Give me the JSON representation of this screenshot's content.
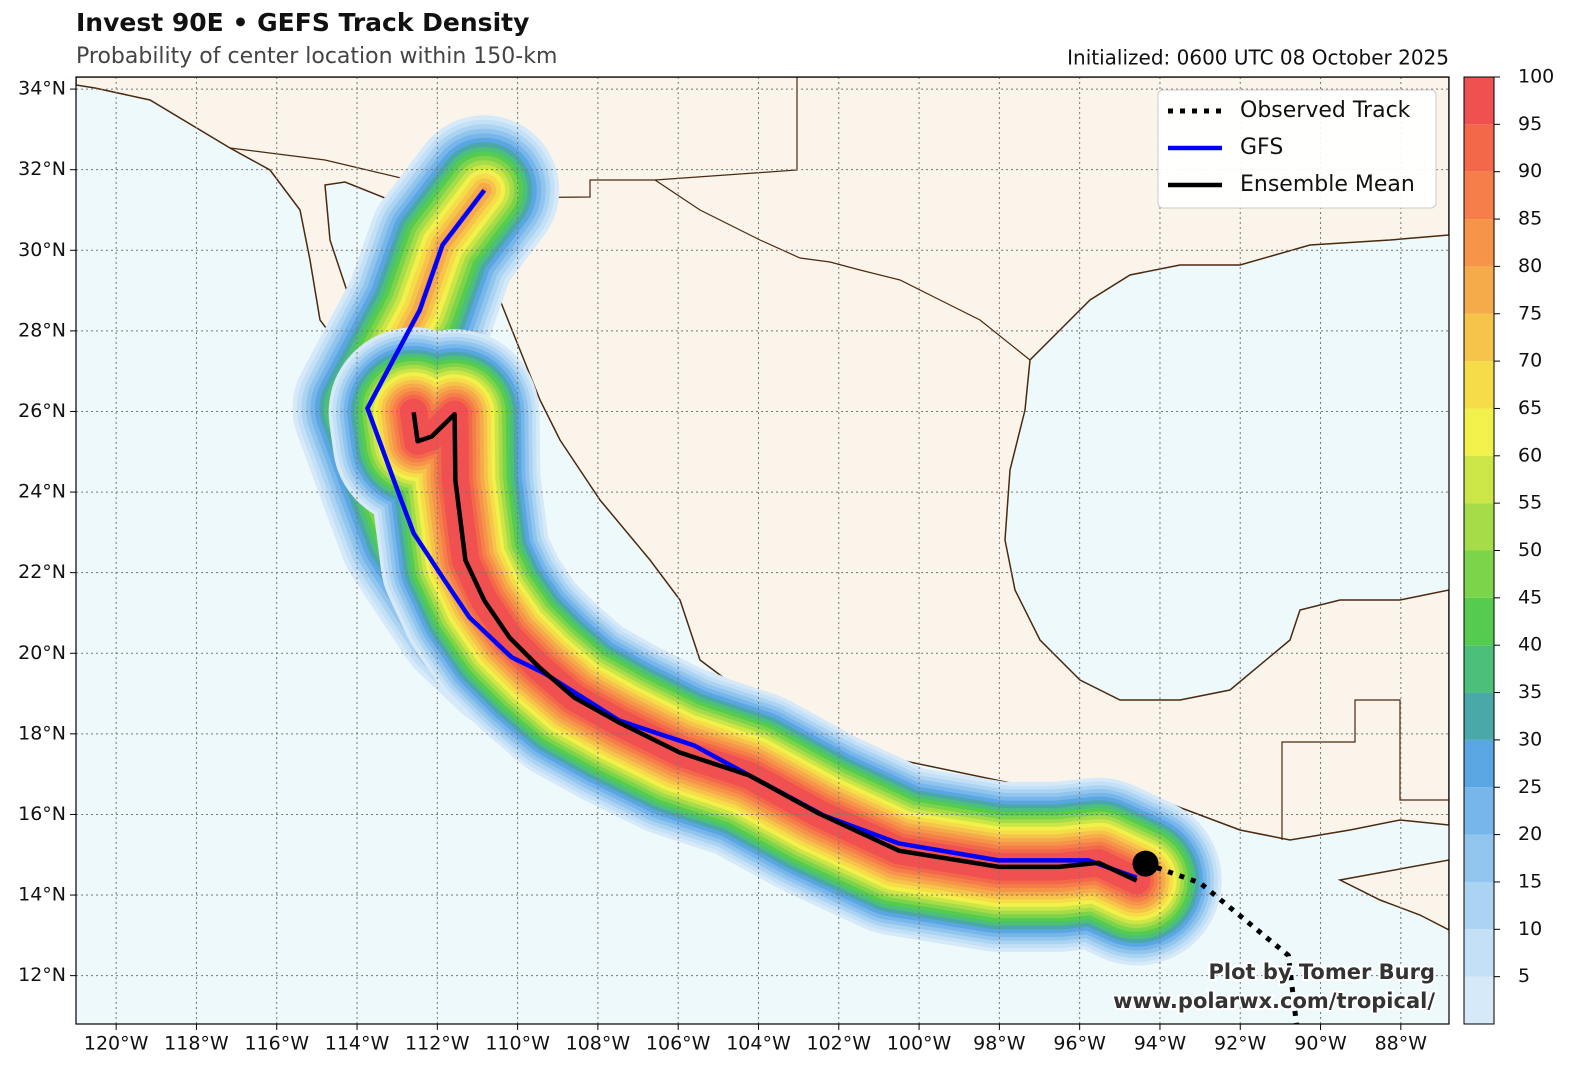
{
  "chart_data": {
    "type": "map",
    "title": "Invest 90E • GEFS Track Density",
    "subtitle": "Probability of center location within 150-km",
    "init_label": "Initialized: 0600 UTC 08 October 2025",
    "credit": [
      "Plot by Tomer Burg",
      "www.polarwx.com/tropical/"
    ],
    "xlim": [
      -121,
      -86.8
    ],
    "ylim": [
      10.8,
      34.3
    ],
    "grid": true,
    "xticks": [
      {
        "value": -120,
        "label": "120°W"
      },
      {
        "value": -118,
        "label": "118°W"
      },
      {
        "value": -116,
        "label": "116°W"
      },
      {
        "value": -114,
        "label": "114°W"
      },
      {
        "value": -112,
        "label": "112°W"
      },
      {
        "value": -110,
        "label": "110°W"
      },
      {
        "value": -108,
        "label": "108°W"
      },
      {
        "value": -106,
        "label": "106°W"
      },
      {
        "value": -104,
        "label": "104°W"
      },
      {
        "value": -102,
        "label": "102°W"
      },
      {
        "value": -100,
        "label": "100°W"
      },
      {
        "value": -98,
        "label": "98°W"
      },
      {
        "value": -96,
        "label": "96°W"
      },
      {
        "value": -94,
        "label": "94°W"
      },
      {
        "value": -92,
        "label": "92°W"
      },
      {
        "value": -90,
        "label": "90°W"
      },
      {
        "value": -88,
        "label": "88°W"
      }
    ],
    "yticks": [
      {
        "value": 12,
        "label": "12°N"
      },
      {
        "value": 14,
        "label": "14°N"
      },
      {
        "value": 16,
        "label": "16°N"
      },
      {
        "value": 18,
        "label": "18°N"
      },
      {
        "value": 20,
        "label": "20°N"
      },
      {
        "value": 22,
        "label": "22°N"
      },
      {
        "value": 24,
        "label": "24°N"
      },
      {
        "value": 26,
        "label": "26°N"
      },
      {
        "value": 28,
        "label": "28°N"
      },
      {
        "value": 30,
        "label": "30°N"
      },
      {
        "value": 32,
        "label": "32°N"
      },
      {
        "value": 34,
        "label": "34°N"
      }
    ],
    "series": [
      {
        "name": "Observed Track",
        "color": "#000000",
        "style": "dotted",
        "x": [
          -94.36,
          -93.0,
          -90.8,
          -90.6
        ],
        "y": [
          14.78,
          14.3,
          12.5,
          10.8
        ]
      },
      {
        "name": "GFS",
        "color": "#0000ff",
        "style": "solid",
        "x": [
          -110.83,
          -111.87,
          -112.44,
          -113.74,
          -112.99,
          -112.59,
          -111.82,
          -111.2,
          -110.15,
          -109.33,
          -107.47,
          -105.6,
          -104.23,
          -102.37,
          -100.5,
          -98.02,
          -95.78,
          -94.58
        ],
        "y": [
          31.49,
          30.13,
          28.51,
          26.08,
          24.04,
          22.98,
          21.81,
          20.89,
          19.9,
          19.5,
          18.33,
          17.71,
          16.97,
          15.97,
          15.28,
          14.86,
          14.86,
          14.43
        ]
      },
      {
        "name": "Ensemble Mean",
        "color": "#000000",
        "style": "solid",
        "x": [
          -112.59,
          -112.49,
          -112.14,
          -111.57,
          -111.55,
          -111.3,
          -110.83,
          -110.2,
          -109.46,
          -108.59,
          -107.47,
          -105.97,
          -104.23,
          -102.49,
          -100.5,
          -98.02,
          -96.52,
          -95.53,
          -94.58
        ],
        "y": [
          25.98,
          25.26,
          25.38,
          25.93,
          24.29,
          22.31,
          21.31,
          20.39,
          19.65,
          18.9,
          18.28,
          17.54,
          16.97,
          16.02,
          15.1,
          14.7,
          14.7,
          14.8,
          14.36
        ]
      }
    ],
    "current_position": {
      "x": -94.36,
      "y": 14.78
    },
    "colorbar": {
      "lim": [
        0,
        100
      ],
      "ticks": [
        5,
        10,
        15,
        20,
        25,
        30,
        35,
        40,
        45,
        50,
        55,
        60,
        65,
        70,
        75,
        80,
        85,
        90,
        95,
        100
      ],
      "colors": [
        "#d6e9f8",
        "#c3e0f6",
        "#abd3f2",
        "#91c5ee",
        "#76b6ea",
        "#5aa6e3",
        "#4aa9a8",
        "#4cbf7a",
        "#55cc4f",
        "#7bd44a",
        "#a5dc48",
        "#cce648",
        "#f2f04a",
        "#f6dc48",
        "#f6c44a",
        "#f6ab4a",
        "#f6954a",
        "#f57e4a",
        "#f4684a",
        "#f05050"
      ]
    }
  }
}
